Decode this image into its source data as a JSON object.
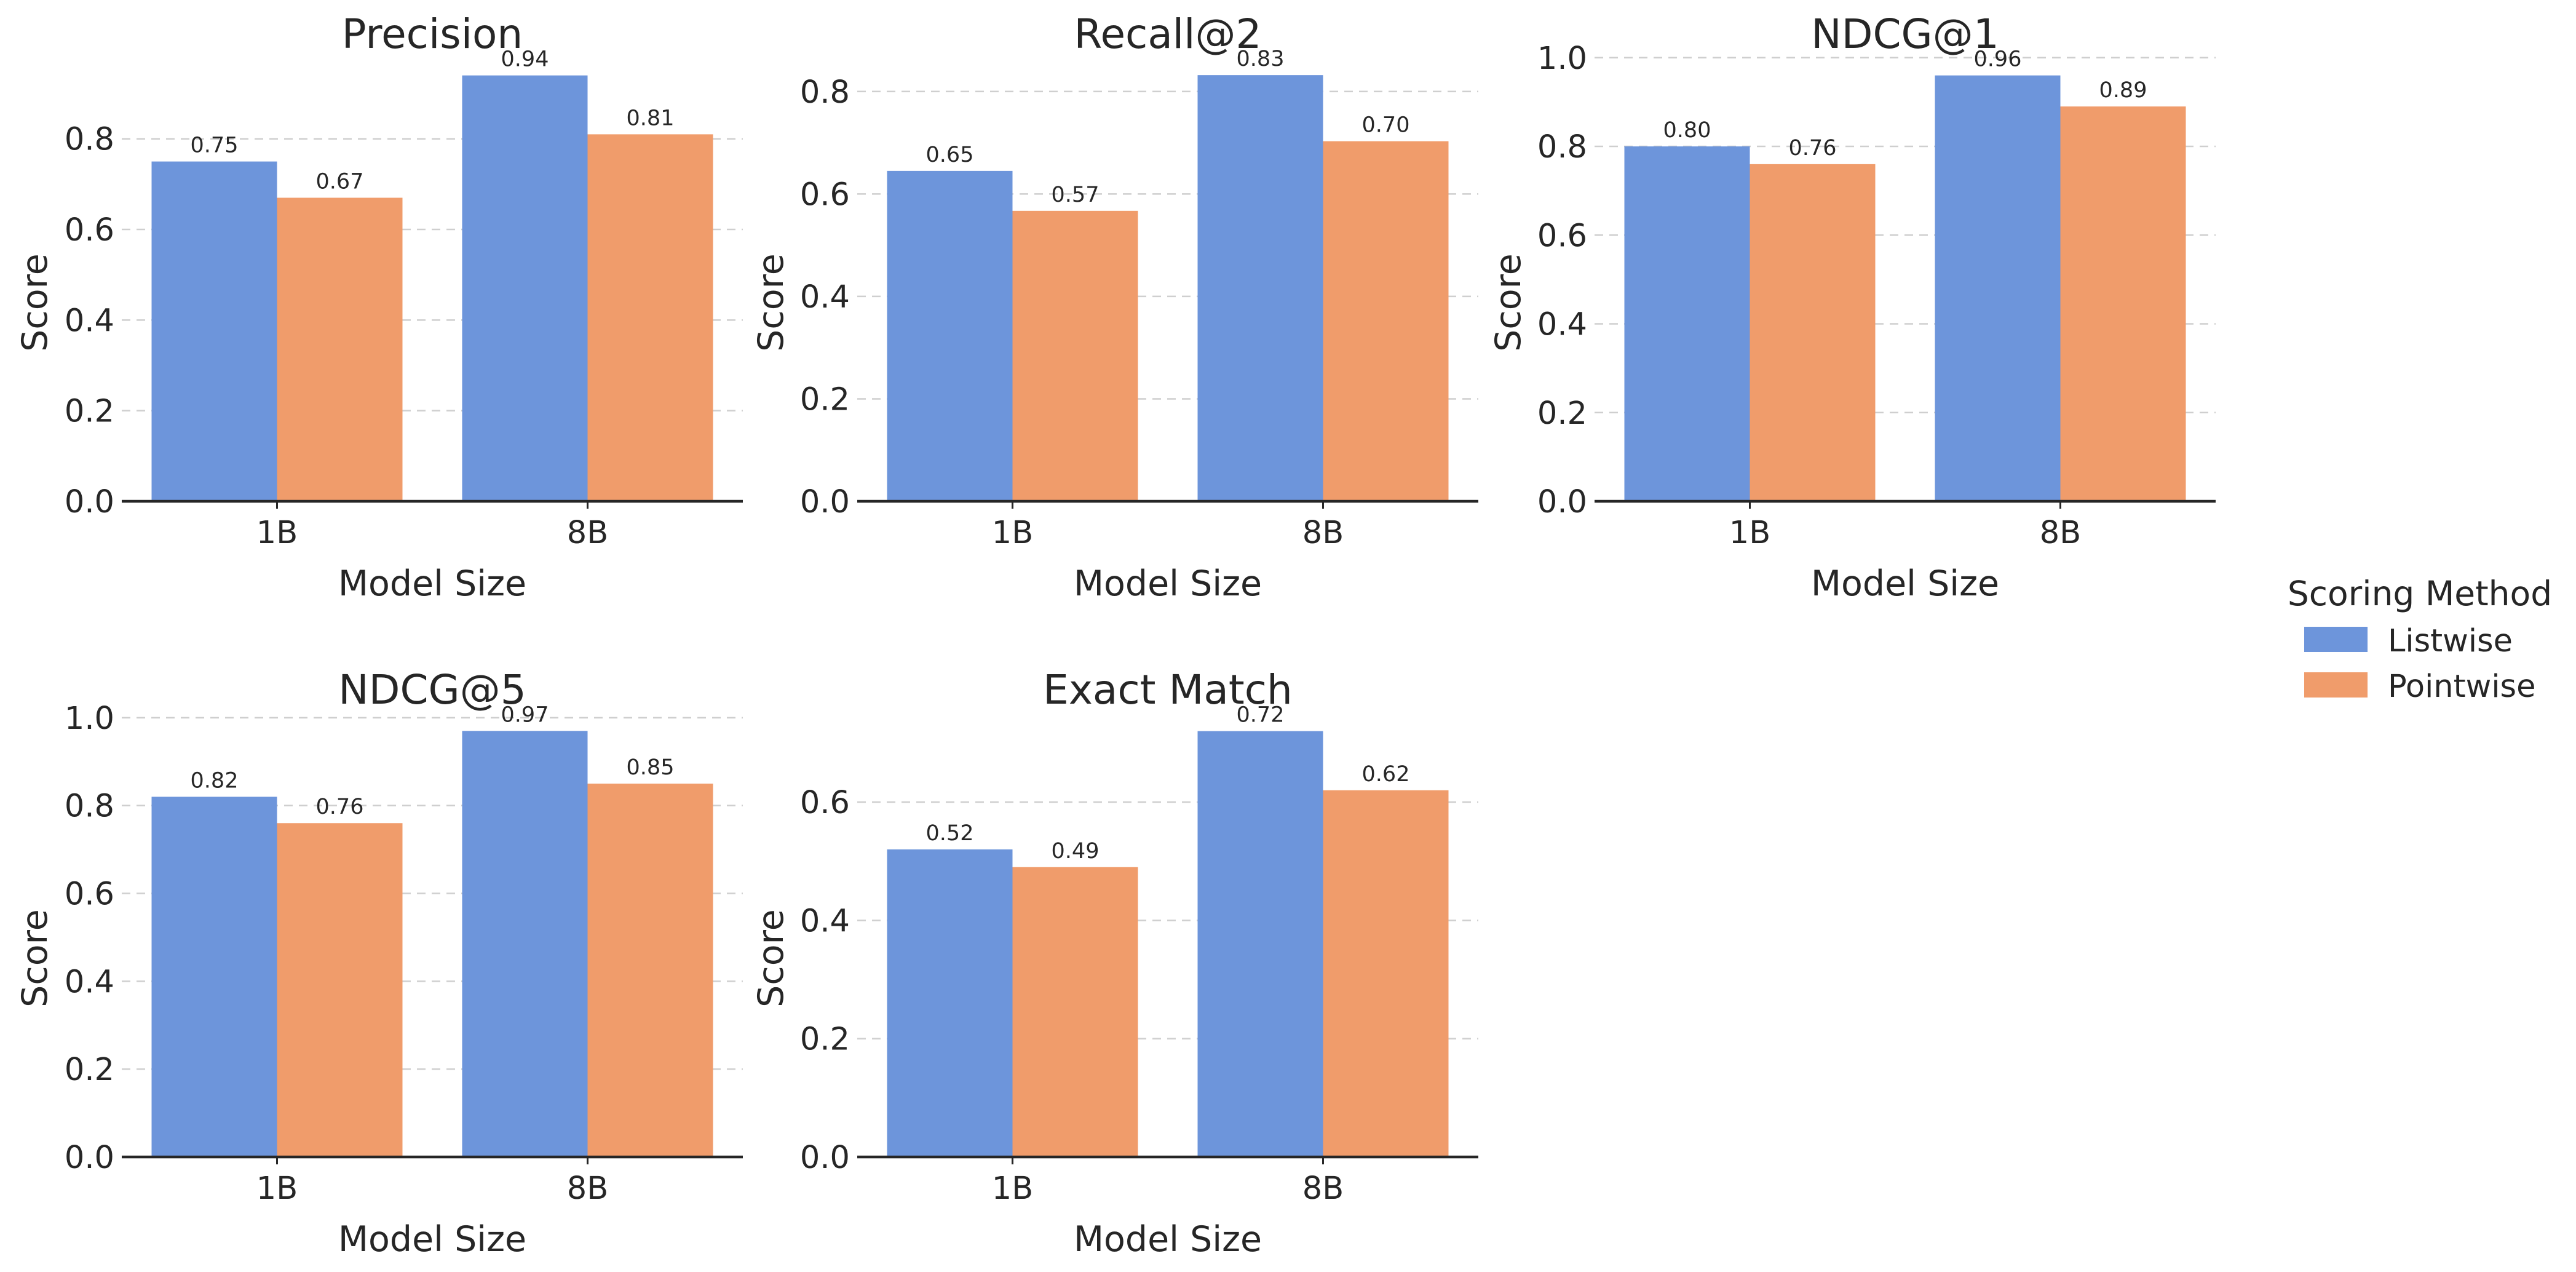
{
  "chart_data": [
    {
      "type": "bar",
      "title": "Precision",
      "xlabel": "Model Size",
      "ylabel": "Score",
      "categories": [
        "1B",
        "8B"
      ],
      "series": [
        {
          "name": "Listwise",
          "values": [
            0.75,
            0.94
          ]
        },
        {
          "name": "Pointwise",
          "values": [
            0.67,
            0.81
          ]
        }
      ],
      "data_labels": [
        [
          "0.75",
          "0.94"
        ],
        [
          "0.67",
          "0.81"
        ]
      ],
      "ylim": [
        0,
        0.987
      ],
      "yticks": [
        0.0,
        0.2,
        0.4,
        0.6,
        0.8
      ],
      "ytick_labels": [
        "0.0",
        "0.2",
        "0.4",
        "0.6",
        "0.8"
      ],
      "grid": true
    },
    {
      "type": "bar",
      "title": "Recall@2",
      "xlabel": "Model Size",
      "ylabel": "Score",
      "categories": [
        "1B",
        "8B"
      ],
      "series": [
        {
          "name": "Listwise",
          "values": [
            0.645,
            0.832
          ]
        },
        {
          "name": "Pointwise",
          "values": [
            0.567,
            0.703
          ]
        }
      ],
      "data_labels": [
        [
          "0.65",
          "0.83"
        ],
        [
          "0.57",
          "0.70"
        ]
      ],
      "ylim": [
        0,
        0.873
      ],
      "yticks": [
        0.0,
        0.2,
        0.4,
        0.6,
        0.8
      ],
      "ytick_labels": [
        "0.0",
        "0.2",
        "0.4",
        "0.6",
        "0.8"
      ],
      "grid": true
    },
    {
      "type": "bar",
      "title": "NDCG@1",
      "xlabel": "Model Size",
      "ylabel": "Score",
      "categories": [
        "1B",
        "8B"
      ],
      "series": [
        {
          "name": "Listwise",
          "values": [
            0.8,
            0.96
          ]
        },
        {
          "name": "Pointwise",
          "values": [
            0.76,
            0.89
          ]
        }
      ],
      "data_labels": [
        [
          "0.80",
          "0.96"
        ],
        [
          "0.76",
          "0.89"
        ]
      ],
      "ylim": [
        0,
        1.008
      ],
      "yticks": [
        0.0,
        0.2,
        0.4,
        0.6,
        0.8,
        1.0
      ],
      "ytick_labels": [
        "0.0",
        "0.2",
        "0.4",
        "0.6",
        "0.8",
        "1.0"
      ],
      "grid": true
    },
    {
      "type": "bar",
      "title": "NDCG@5",
      "xlabel": "Model Size",
      "ylabel": "Score",
      "categories": [
        "1B",
        "8B"
      ],
      "series": [
        {
          "name": "Listwise",
          "values": [
            0.82,
            0.97
          ]
        },
        {
          "name": "Pointwise",
          "values": [
            0.76,
            0.85
          ]
        }
      ],
      "data_labels": [
        [
          "0.82",
          "0.97"
        ],
        [
          "0.76",
          "0.85"
        ]
      ],
      "ylim": [
        0,
        1.018
      ],
      "yticks": [
        0.0,
        0.2,
        0.4,
        0.6,
        0.8,
        1.0
      ],
      "ytick_labels": [
        "0.0",
        "0.2",
        "0.4",
        "0.6",
        "0.8",
        "1.0"
      ],
      "grid": true
    },
    {
      "type": "bar",
      "title": "Exact Match",
      "xlabel": "Model Size",
      "ylabel": "Score",
      "categories": [
        "1B",
        "8B"
      ],
      "series": [
        {
          "name": "Listwise",
          "values": [
            0.52,
            0.72
          ]
        },
        {
          "name": "Pointwise",
          "values": [
            0.49,
            0.62
          ]
        }
      ],
      "data_labels": [
        [
          "0.52",
          "0.72"
        ],
        [
          "0.49",
          "0.62"
        ]
      ],
      "ylim": [
        0,
        0.756
      ],
      "yticks": [
        0.0,
        0.2,
        0.4,
        0.6
      ],
      "ytick_labels": [
        "0.0",
        "0.2",
        "0.4",
        "0.6"
      ],
      "grid": true
    }
  ],
  "legend": {
    "title": "Scoring Method",
    "placement": "right",
    "entries": [
      "Listwise",
      "Pointwise"
    ]
  },
  "colors": {
    "Listwise": "#6d95db",
    "Pointwise": "#f09c6b",
    "text": "#262626",
    "grid": "#cfcfcf",
    "axis": "#262626"
  }
}
